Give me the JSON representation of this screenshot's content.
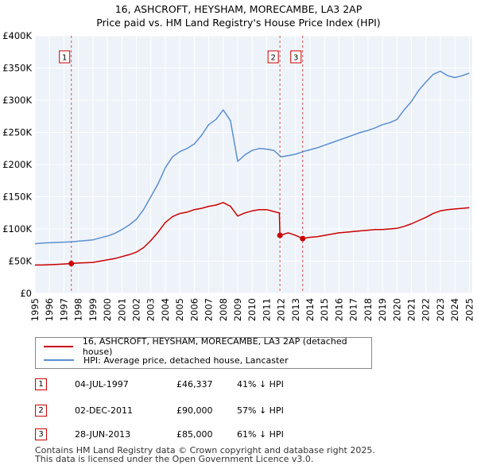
{
  "title_line1": "16, ASHCROFT, HEYSHAM, MORECAMBE, LA3 2AP",
  "title_line2": "Price paid vs. HM Land Registry's House Price Index (HPI)",
  "legend": [
    {
      "label": "16, ASHCROFT, HEYSHAM, MORECAMBE, LA3 2AP (detached house)",
      "color": "#cc0000"
    },
    {
      "label": "HPI: Average price, detached house, Lancaster",
      "color": "#5b8fd0"
    }
  ],
  "transactions": [
    {
      "num": "1",
      "date": "04-JUL-1997",
      "price": "£46,337",
      "hpi": "41% ↓ HPI"
    },
    {
      "num": "2",
      "date": "02-DEC-2011",
      "price": "£90,000",
      "hpi": "57% ↓ HPI"
    },
    {
      "num": "3",
      "date": "28-JUN-2013",
      "price": "£85,000",
      "hpi": "61% ↓ HPI"
    }
  ],
  "footer_line1": "Contains HM Land Registry data © Crown copyright and database right 2025.",
  "footer_line2": "This data is licensed under the Open Government Licence v3.0.",
  "chart_data": {
    "type": "line",
    "title": "16, ASHCROFT, HEYSHAM, MORECAMBE, LA3 2AP",
    "subtitle": "Price paid vs. HM Land Registry's House Price Index (HPI)",
    "xlabel": "",
    "ylabel": "",
    "xlim": [
      1995,
      2025.2
    ],
    "ylim": [
      0,
      400000
    ],
    "x_ticks": [
      1995,
      1996,
      1997,
      1998,
      1999,
      2000,
      2001,
      2002,
      2003,
      2004,
      2005,
      2006,
      2007,
      2008,
      2009,
      2010,
      2011,
      2012,
      2013,
      2014,
      2015,
      2016,
      2017,
      2018,
      2019,
      2020,
      2021,
      2022,
      2023,
      2024,
      2025
    ],
    "y_ticks": [
      0,
      50000,
      100000,
      150000,
      200000,
      250000,
      300000,
      350000,
      400000
    ],
    "y_tick_labels": [
      "£0",
      "£50K",
      "£100K",
      "£150K",
      "£200K",
      "£250K",
      "£300K",
      "£350K",
      "£400K"
    ],
    "grid": true,
    "series": [
      {
        "name": "16, ASHCROFT, HEYSHAM, MORECAMBE, LA3 2AP (detached house)",
        "color": "#cc0000",
        "x": [
          1995.0,
          1995.5,
          1996.0,
          1996.5,
          1997.0,
          1997.51,
          1998.0,
          1998.5,
          1999.0,
          1999.5,
          2000.0,
          2000.5,
          2001.0,
          2001.5,
          2002.0,
          2002.5,
          2003.0,
          2003.5,
          2004.0,
          2004.5,
          2005.0,
          2005.5,
          2006.0,
          2006.5,
          2007.0,
          2007.5,
          2008.0,
          2008.5,
          2009.0,
          2009.5,
          2010.0,
          2010.5,
          2011.0,
          2011.5,
          2011.88,
          2011.92,
          2012.5,
          2013.0,
          2013.49,
          2014.0,
          2014.5,
          2015.0,
          2015.5,
          2016.0,
          2016.5,
          2017.0,
          2017.5,
          2018.0,
          2018.5,
          2019.0,
          2019.5,
          2020.0,
          2020.5,
          2021.0,
          2021.5,
          2022.0,
          2022.5,
          2023.0,
          2023.5,
          2024.0,
          2024.5,
          2025.0
        ],
        "y": [
          44000,
          44000,
          44500,
          45000,
          45500,
          46337,
          47000,
          47500,
          48000,
          50000,
          52000,
          54000,
          57000,
          60000,
          64000,
          71000,
          82000,
          95000,
          110000,
          119000,
          124000,
          126000,
          130000,
          132000,
          135000,
          137000,
          141000,
          135000,
          120000,
          125000,
          128000,
          130000,
          130000,
          127000,
          125000,
          90000,
          94000,
          90000,
          85000,
          87000,
          88000,
          90000,
          92000,
          94000,
          95000,
          96000,
          97000,
          98000,
          99000,
          99000,
          100000,
          101000,
          104000,
          108000,
          113000,
          118000,
          124000,
          128000,
          130000,
          131000,
          132000,
          133000
        ]
      },
      {
        "name": "HPI: Average price, detached house, Lancaster",
        "color": "#5b8fd0",
        "x": [
          1995.0,
          1995.5,
          1996.0,
          1996.5,
          1997.0,
          1997.5,
          1998.0,
          1998.5,
          1999.0,
          1999.5,
          2000.0,
          2000.5,
          2001.0,
          2001.5,
          2002.0,
          2002.5,
          2003.0,
          2003.5,
          2004.0,
          2004.5,
          2005.0,
          2005.5,
          2006.0,
          2006.5,
          2007.0,
          2007.5,
          2008.0,
          2008.5,
          2009.0,
          2009.5,
          2010.0,
          2010.5,
          2011.0,
          2011.5,
          2012.0,
          2012.5,
          2013.0,
          2013.5,
          2014.0,
          2014.5,
          2015.0,
          2015.5,
          2016.0,
          2016.5,
          2017.0,
          2017.5,
          2018.0,
          2018.5,
          2019.0,
          2019.5,
          2020.0,
          2020.5,
          2021.0,
          2021.5,
          2022.0,
          2022.5,
          2023.0,
          2023.5,
          2024.0,
          2024.5,
          2025.0
        ],
        "y": [
          77000,
          78000,
          78500,
          79000,
          79500,
          80000,
          81000,
          82000,
          83000,
          86000,
          89000,
          93000,
          99000,
          106000,
          115000,
          130000,
          150000,
          170000,
          195000,
          212000,
          220000,
          225000,
          232000,
          245000,
          262000,
          270000,
          285000,
          268000,
          205000,
          215000,
          222000,
          225000,
          224000,
          222000,
          212000,
          214000,
          216000,
          220000,
          223000,
          226000,
          230000,
          234000,
          238000,
          242000,
          246000,
          250000,
          253000,
          257000,
          262000,
          265000,
          270000,
          285000,
          298000,
          315000,
          328000,
          340000,
          345000,
          338000,
          335000,
          338000,
          342000
        ]
      }
    ],
    "annotations": [
      {
        "label": "1",
        "x": 1997.51,
        "y": 46337
      },
      {
        "label": "2",
        "x": 2011.92,
        "y": 90000
      },
      {
        "label": "3",
        "x": 2013.49,
        "y": 85000
      }
    ]
  }
}
